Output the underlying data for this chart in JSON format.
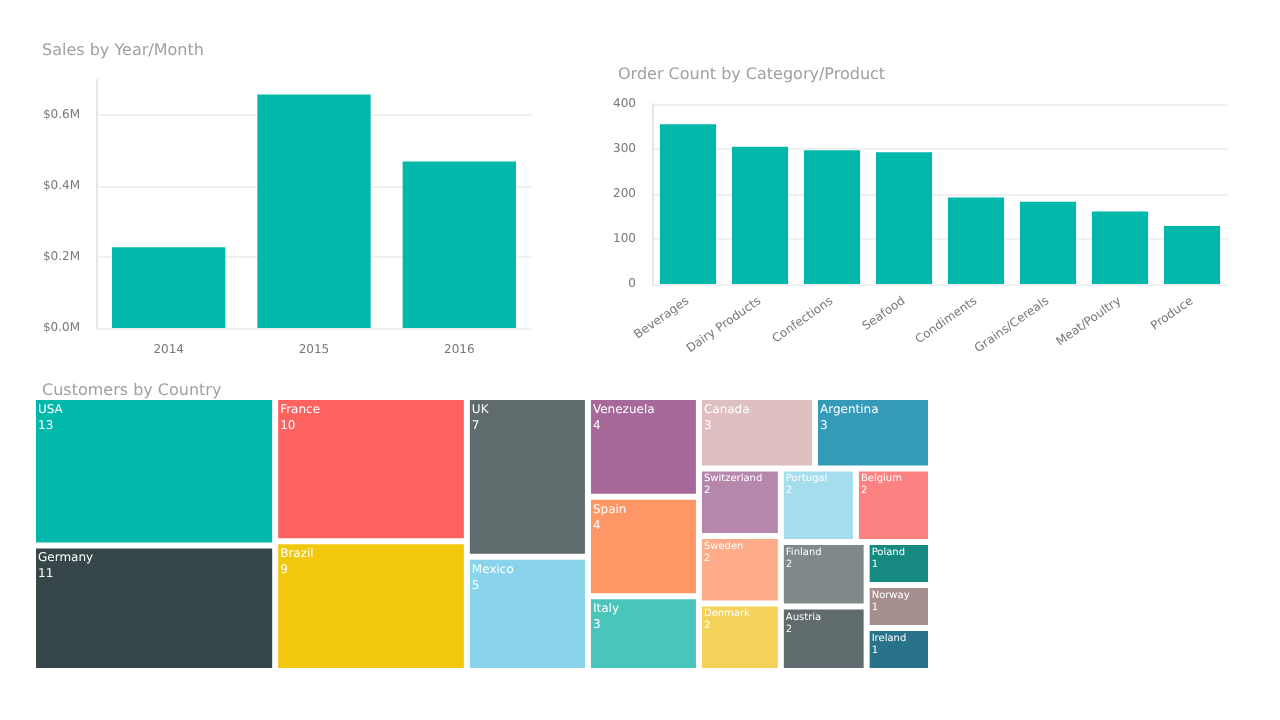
{
  "chart_data": [
    {
      "type": "bar",
      "title": "Sales by Year/Month",
      "categories": [
        "2014",
        "2015",
        "2016"
      ],
      "values": [
        0.228,
        0.659,
        0.47
      ],
      "color": "#01b8aa",
      "ylim": [
        0,
        0.7
      ],
      "yticks": [
        {
          "value": 0,
          "label": "$0.0M"
        },
        {
          "value": 0.2,
          "label": "$0.2M"
        },
        {
          "value": 0.4,
          "label": "$0.4M"
        },
        {
          "value": 0.6,
          "label": "$0.6M"
        }
      ],
      "grid": "y"
    },
    {
      "type": "bar",
      "title": "Order Count by Category/Product",
      "categories": [
        "Beverages",
        "Dairy Products",
        "Confections",
        "Seafood",
        "Condiments",
        "Grains/Cereals",
        "Meat/Poultry",
        "Produce"
      ],
      "values": [
        355,
        305,
        297,
        293,
        192,
        183,
        161,
        129
      ],
      "color": "#01b8aa",
      "ylim": [
        0,
        400
      ],
      "yticks": [
        0,
        100,
        200,
        300,
        400
      ],
      "grid": "y"
    },
    {
      "type": "other",
      "title": "Customers by Country",
      "data_labels": true,
      "categories": [
        "USA",
        "Germany",
        "France",
        "Brazil",
        "UK",
        "Mexico",
        "Spain",
        "Venezuela",
        "Argentina",
        "Canada",
        "Italy",
        "Austria",
        "Finland",
        "Belgium",
        "Portugal",
        "Denmark",
        "Sweden",
        "Switzerland",
        "Ireland",
        "Norway",
        "Poland"
      ],
      "values": [
        13,
        11,
        10,
        9,
        7,
        5,
        4,
        4,
        3,
        3,
        3,
        2,
        2,
        2,
        2,
        2,
        2,
        2,
        1,
        1,
        1
      ],
      "colors": [
        "#01b8aa",
        "#374649",
        "#fd625e",
        "#f2c80f",
        "#5f6b6d",
        "#8ad4eb",
        "#fe9666",
        "#a66999",
        "#3599b8",
        "#dfbfbf",
        "#4ac5bb",
        "#5f6b6d",
        "#7f898a",
        "#fb8281",
        "#a4ddee",
        "#f4d25a",
        "#fdab89",
        "#b687ac",
        "#28738a",
        "#a78f8f",
        "#168980"
      ]
    }
  ]
}
